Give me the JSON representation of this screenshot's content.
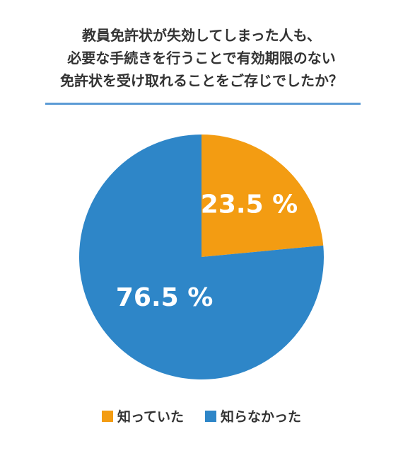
{
  "title_lines": [
    "教員免許状が失効してしまった人も、",
    "必要な手続きを行うことで有効期限のない",
    "免許状を受け取れることをご存じでしたか？"
  ],
  "colors": {
    "rule": "#5b9bd5"
  },
  "chart_data": {
    "type": "pie",
    "title": "教員免許状が失効してしまった人も、必要な手続きを行うことで有効期限のない免許状を受け取れることをご存じでしたか？",
    "slices": [
      {
        "label": "知っていた",
        "value": 23.5,
        "display": "23.5 %",
        "color": "#f39c12"
      },
      {
        "label": "知らなかった",
        "value": 76.5,
        "display": "76.5 %",
        "color": "#2e86c8"
      }
    ],
    "legend": "bottom"
  }
}
